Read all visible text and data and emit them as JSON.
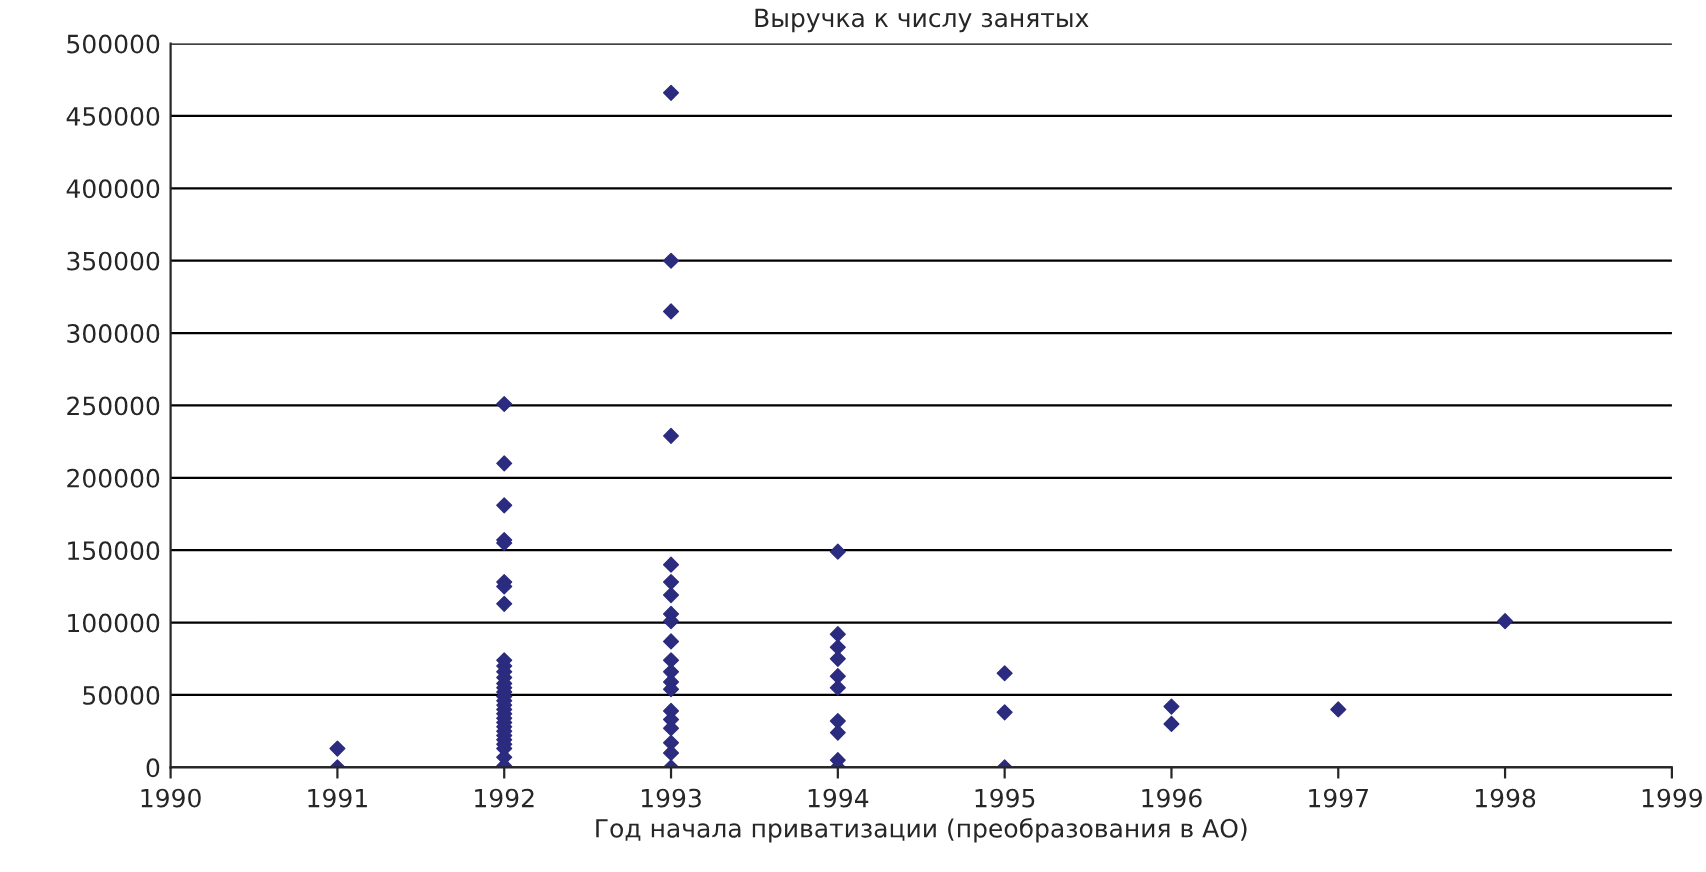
{
  "chart_data": {
    "type": "scatter",
    "title": "Выручка к числу занятых",
    "xlabel": "Год начала приватизации (преобразования в АО)",
    "x": [
      1991,
      1991,
      1992,
      1992,
      1992,
      1992,
      1992,
      1992,
      1992,
      1992,
      1992,
      1992,
      1992,
      1992,
      1992,
      1992,
      1992,
      1992,
      1992,
      1992,
      1992,
      1992,
      1992,
      1992,
      1992,
      1992,
      1992,
      1992,
      1992,
      1992,
      1992,
      1992,
      1993,
      1993,
      1993,
      1993,
      1993,
      1993,
      1993,
      1993,
      1993,
      1993,
      1993,
      1993,
      1993,
      1993,
      1993,
      1993,
      1993,
      1993,
      1993,
      1993,
      1994,
      1994,
      1994,
      1994,
      1994,
      1994,
      1994,
      1994,
      1994,
      1994,
      1995,
      1995,
      1995,
      1996,
      1996,
      1997,
      1998
    ],
    "values": [
      13000,
      0,
      251000,
      210000,
      181000,
      157000,
      155000,
      128000,
      125000,
      113000,
      74000,
      70000,
      66000,
      62000,
      58000,
      55000,
      52000,
      49000,
      46000,
      43000,
      40000,
      37000,
      34000,
      31000,
      28000,
      25000,
      22000,
      19000,
      16000,
      13000,
      7000,
      1000,
      466000,
      350000,
      315000,
      229000,
      140000,
      128000,
      119000,
      106000,
      101000,
      87000,
      74000,
      66000,
      59000,
      54000,
      39000,
      33000,
      27000,
      17000,
      10000,
      0,
      149000,
      92000,
      83000,
      75000,
      63000,
      55000,
      32000,
      24000,
      5000,
      0,
      65000,
      38000,
      0,
      42000,
      30000,
      40000,
      101000
    ],
    "color": "#2b2b7f",
    "marker": "diamond",
    "xlim": [
      1990,
      1999
    ],
    "xticks": [
      1990,
      1991,
      1992,
      1993,
      1994,
      1995,
      1996,
      1997,
      1998,
      1999
    ],
    "ylim": [
      0,
      500000
    ],
    "yticks": [
      0,
      50000,
      100000,
      150000,
      200000,
      250000,
      300000,
      350000,
      400000,
      450000,
      500000
    ],
    "grid": "y"
  }
}
